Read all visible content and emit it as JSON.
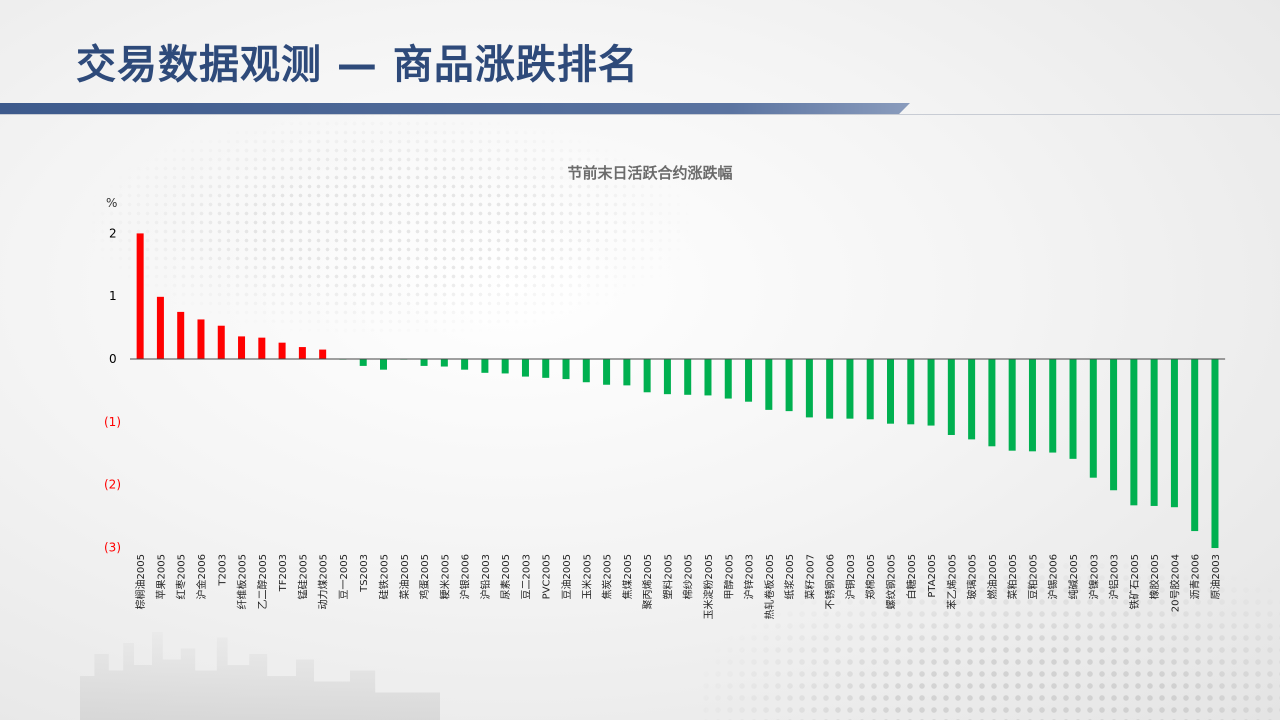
{
  "title": "交易数据观测 — 商品涨跌排名",
  "colors": {
    "up": "#ff0000",
    "down": "#00b050",
    "title": "#2e4a7a",
    "neg_tick": "#ff0000",
    "pos_tick": "#000000"
  },
  "chart_data": {
    "type": "bar",
    "title": "节前末日活跃合约涨跌幅",
    "unit": "%",
    "ylim": [
      -3,
      2
    ],
    "yticks": [
      {
        "value": 2,
        "label": "2"
      },
      {
        "value": 1,
        "label": "1"
      },
      {
        "value": 0,
        "label": "0"
      },
      {
        "value": -1,
        "label": "(1)"
      },
      {
        "value": -2,
        "label": "(2)"
      },
      {
        "value": -3,
        "label": "(3)"
      }
    ],
    "categories": [
      "棕榈油2005",
      "苹果2005",
      "红枣2005",
      "沪金2006",
      "T2003",
      "纤维板2005",
      "乙二醇2005",
      "TF2003",
      "锰硅2005",
      "动力煤2005",
      "豆一2005",
      "TS2003",
      "硅铁2005",
      "菜油2005",
      "鸡蛋2005",
      "粳米2005",
      "沪银2006",
      "沪铅2003",
      "尿素2005",
      "豆二2003",
      "PVC2005",
      "豆油2005",
      "玉米2005",
      "焦炭2005",
      "焦煤2005",
      "聚丙烯2005",
      "塑料2005",
      "棉纱2005",
      "玉米淀粉2005",
      "甲醇2005",
      "沪锌2003",
      "热轧卷板2005",
      "纸浆2005",
      "菜籽2007",
      "不锈钢2006",
      "沪铜2003",
      "郑棉2005",
      "螺纹钢2005",
      "白糖2005",
      "PTA2005",
      "苯乙烯2005",
      "玻璃2005",
      "燃油2005",
      "菜粕2005",
      "豆粕2005",
      "沪锡2006",
      "纯碱2005",
      "沪镍2003",
      "沪铝2003",
      "铁矿石2005",
      "橡胶2005",
      "20号胶2004",
      "沥青2006",
      "原油2003"
    ],
    "values": [
      2.0,
      0.99,
      0.75,
      0.63,
      0.53,
      0.36,
      0.34,
      0.26,
      0.19,
      0.15,
      -0.01,
      -0.11,
      -0.17,
      -0.01,
      -0.11,
      -0.12,
      -0.17,
      -0.22,
      -0.23,
      -0.28,
      -0.3,
      -0.32,
      -0.37,
      -0.41,
      -0.42,
      -0.53,
      -0.56,
      -0.57,
      -0.58,
      -0.63,
      -0.68,
      -0.81,
      -0.83,
      -0.93,
      -0.95,
      -0.95,
      -0.96,
      -1.03,
      -1.04,
      -1.06,
      -1.21,
      -1.28,
      -1.39,
      -1.46,
      -1.47,
      -1.49,
      -1.59,
      -1.89,
      -2.09,
      -2.33,
      -2.34,
      -2.36,
      -2.74,
      -3.01
    ]
  }
}
